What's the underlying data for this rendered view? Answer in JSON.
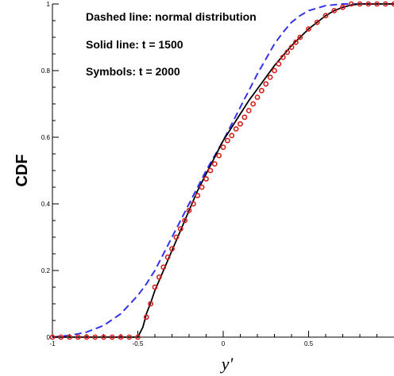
{
  "chart_data": {
    "type": "line",
    "xlabel": "y'",
    "ylabel": "CDF",
    "xlim": [
      -1,
      1
    ],
    "ylim": [
      0,
      1
    ],
    "x_ticks": [
      "-1",
      "-0.5",
      "0",
      "0.5"
    ],
    "y_ticks": [
      "0",
      "0.2",
      "0.4",
      "0.6",
      "0.8",
      "1"
    ],
    "annotations": [
      "Dashed line: normal distribution",
      "Solid line: t = 1500",
      "Symbols:  t = 2000"
    ],
    "series": [
      {
        "style": "dashed",
        "color": "#3333ee",
        "x": [
          -1.0,
          -0.9,
          -0.8,
          -0.7,
          -0.6,
          -0.5,
          -0.45,
          -0.4,
          -0.35,
          -0.3,
          -0.25,
          -0.2,
          -0.15,
          -0.1,
          -0.05,
          0.0,
          0.05,
          0.1,
          0.15,
          0.2,
          0.25,
          0.3,
          0.35,
          0.4,
          0.45,
          0.5,
          0.6,
          0.7,
          0.8,
          0.85,
          0.9,
          1.0
        ],
        "y": [
          0.0,
          0.005,
          0.015,
          0.035,
          0.07,
          0.125,
          0.16,
          0.2,
          0.25,
          0.3,
          0.35,
          0.4,
          0.45,
          0.5,
          0.545,
          0.59,
          0.64,
          0.69,
          0.74,
          0.79,
          0.835,
          0.88,
          0.915,
          0.945,
          0.965,
          0.98,
          0.995,
          1.0,
          1.0,
          1.0,
          1.0,
          1.0
        ]
      },
      {
        "style": "solid",
        "color": "#000000",
        "x": [
          -1.0,
          -0.5,
          -0.47,
          -0.45,
          -0.42,
          -0.4,
          -0.35,
          -0.3,
          -0.25,
          -0.2,
          -0.15,
          -0.1,
          -0.05,
          0.0,
          0.05,
          0.1,
          0.15,
          0.2,
          0.25,
          0.3,
          0.35,
          0.4,
          0.45,
          0.5,
          0.55,
          0.6,
          0.65,
          0.7,
          0.75,
          0.8,
          0.85,
          0.9,
          1.0
        ],
        "y": [
          0.0,
          0.0,
          0.03,
          0.07,
          0.11,
          0.14,
          0.2,
          0.26,
          0.32,
          0.38,
          0.44,
          0.49,
          0.54,
          0.59,
          0.63,
          0.67,
          0.71,
          0.745,
          0.78,
          0.815,
          0.845,
          0.875,
          0.9,
          0.925,
          0.945,
          0.965,
          0.98,
          0.99,
          0.997,
          1.0,
          1.0,
          1.0,
          1.0
        ]
      },
      {
        "style": "markers",
        "color": "#d42020",
        "x": [
          -1.0,
          -0.95,
          -0.9,
          -0.85,
          -0.8,
          -0.75,
          -0.7,
          -0.65,
          -0.6,
          -0.55,
          -0.5,
          -0.45,
          -0.425,
          -0.4,
          -0.375,
          -0.35,
          -0.325,
          -0.3,
          -0.275,
          -0.25,
          -0.225,
          -0.2,
          -0.175,
          -0.15,
          -0.125,
          -0.1,
          -0.075,
          -0.05,
          -0.025,
          0.0,
          0.025,
          0.05,
          0.075,
          0.1,
          0.125,
          0.15,
          0.175,
          0.2,
          0.225,
          0.25,
          0.275,
          0.3,
          0.325,
          0.35,
          0.375,
          0.4,
          0.425,
          0.45,
          0.5,
          0.55,
          0.6,
          0.65,
          0.7,
          0.75,
          0.8,
          0.85,
          0.9,
          0.95,
          1.0
        ],
        "y": [
          0.0,
          0.0,
          0.0,
          0.0,
          0.0,
          0.0,
          0.0,
          0.0,
          0.0,
          0.0,
          0.0,
          0.06,
          0.1,
          0.15,
          0.18,
          0.21,
          0.24,
          0.265,
          0.3,
          0.325,
          0.35,
          0.38,
          0.4,
          0.425,
          0.45,
          0.475,
          0.5,
          0.52,
          0.545,
          0.57,
          0.59,
          0.605,
          0.625,
          0.64,
          0.66,
          0.68,
          0.7,
          0.72,
          0.74,
          0.76,
          0.78,
          0.8,
          0.82,
          0.84,
          0.855,
          0.87,
          0.885,
          0.9,
          0.925,
          0.945,
          0.965,
          0.98,
          0.99,
          1.0,
          1.0,
          1.0,
          1.0,
          1.0,
          1.0
        ]
      }
    ]
  }
}
